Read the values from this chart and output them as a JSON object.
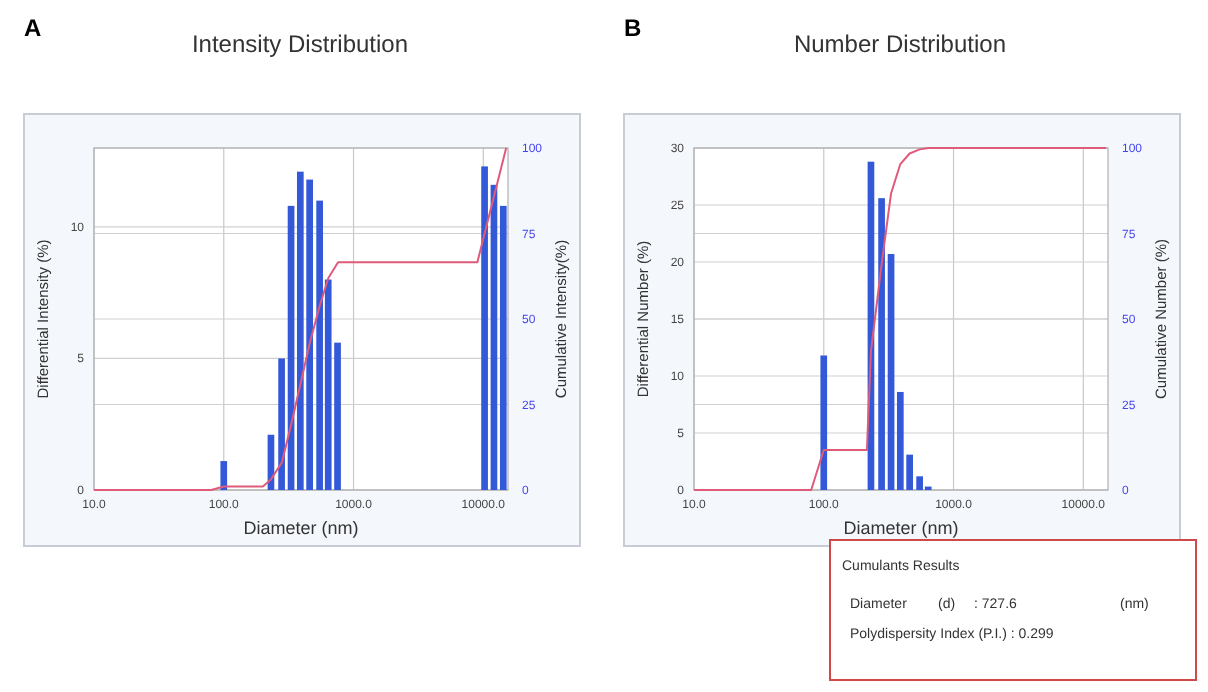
{
  "chart_data": [
    {
      "type": "bar",
      "title": "Intensity Distribution",
      "xlabel": "Diameter (nm)",
      "ylabel": "Differential Intensity (%)",
      "y2label": "Cumulative Intensity(%)",
      "annotations": [
        "A"
      ],
      "log": "x",
      "grid": true,
      "xlim": [
        10,
        15500
      ],
      "xticks": [
        {
          "value": 10,
          "label": "10.0"
        },
        {
          "value": 100,
          "label": "100.0"
        },
        {
          "value": 1000,
          "label": "1000.0"
        },
        {
          "value": 10000,
          "label": "10000.0"
        }
      ],
      "ylim": [
        0,
        13
      ],
      "yticks": [
        0,
        5,
        10
      ],
      "y2lim": [
        0,
        100
      ],
      "y2ticks": [
        0,
        25,
        50,
        75,
        100
      ],
      "series": [
        {
          "type": "bar",
          "color": "#3358d8",
          "x": [
            100,
            231,
            279,
            330,
            389,
            459,
            548,
            638,
            753,
            10230,
            12080,
            14260
          ],
          "values": [
            1.1,
            2.1,
            5.0,
            10.8,
            12.1,
            11.8,
            11.0,
            8.0,
            5.6,
            12.3,
            11.6,
            10.8
          ]
        },
        {
          "type": "line",
          "axis": "y2",
          "color": "#e05a7a",
          "x": [
            10,
            80,
            100,
            200,
            230,
            280,
            330,
            390,
            460,
            550,
            640,
            760,
            9000,
            15000
          ],
          "values": [
            0,
            0,
            1,
            1,
            3,
            8,
            19,
            31,
            43,
            54,
            62,
            66.6,
            66.6,
            100
          ]
        }
      ]
    },
    {
      "type": "bar",
      "title": "Number Distribution",
      "xlabel": "Diameter (nm)",
      "ylabel": "Differential Number (%)",
      "y2label": "Cumulative Number (%)",
      "annotations": [
        "B"
      ],
      "log": "x",
      "grid": true,
      "xlim": [
        10,
        15500
      ],
      "xticks": [
        {
          "value": 10,
          "label": "10.0"
        },
        {
          "value": 100,
          "label": "100.0"
        },
        {
          "value": 1000,
          "label": "1000.0"
        },
        {
          "value": 10000,
          "label": "10000.0"
        }
      ],
      "ylim": [
        0,
        30
      ],
      "yticks": [
        0,
        5,
        10,
        15,
        20,
        25,
        30
      ],
      "y2lim": [
        0,
        100
      ],
      "y2ticks": [
        0,
        25,
        50,
        75,
        100
      ],
      "series": [
        {
          "type": "bar",
          "color": "#3358d8",
          "x": [
            100,
            231,
            279,
            330,
            389,
            459,
            548,
            638
          ],
          "values": [
            11.8,
            28.8,
            25.6,
            20.7,
            8.6,
            3.1,
            1.2,
            0.3
          ]
        },
        {
          "type": "line",
          "axis": "y2",
          "color": "#e05a7a",
          "x": [
            10,
            80,
            100,
            215,
            231,
            279,
            330,
            389,
            459,
            548,
            640,
            15000
          ],
          "values": [
            0,
            0,
            11.7,
            11.7,
            40.5,
            66,
            86.7,
            95.3,
            98.4,
            99.6,
            100,
            100
          ]
        }
      ]
    },
    {
      "type": "other",
      "title": "Cumulants Results",
      "annotations": [
        "Diameter",
        "(d)",
        ": 727.6",
        "(nm)",
        "Polydispersity Index (P.I.) : 0.299"
      ]
    }
  ]
}
